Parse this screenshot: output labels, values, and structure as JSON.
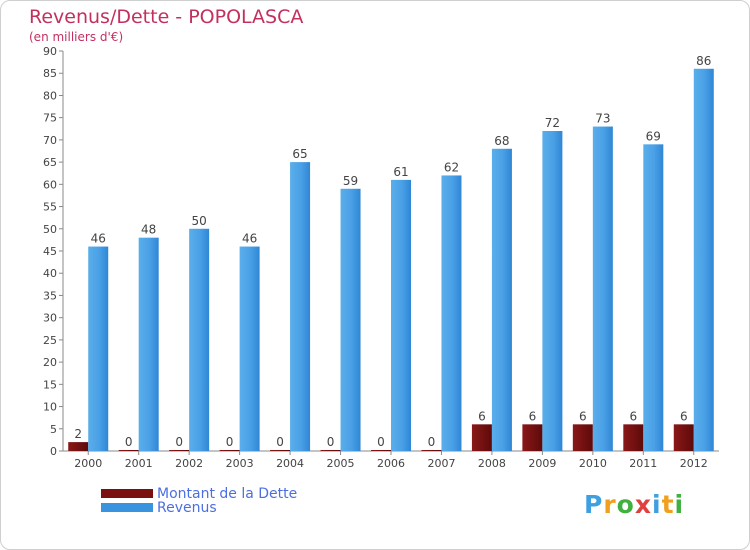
{
  "header": {
    "title": "Revenus/Dette - POPOLASCA",
    "subtitle": "(en milliers d'€)"
  },
  "chart_data": {
    "type": "bar",
    "title": "Revenus/Dette - POPOLASCA",
    "ylabel": "(en milliers d'€)",
    "xlabel": "",
    "categories": [
      "2000",
      "2001",
      "2002",
      "2003",
      "2004",
      "2005",
      "2006",
      "2007",
      "2008",
      "2009",
      "2010",
      "2011",
      "2012"
    ],
    "series": [
      {
        "name": "Montant de la Dette",
        "color": "#7a1010",
        "values": [
          2,
          0,
          0,
          0,
          0,
          0,
          0,
          0,
          6,
          6,
          6,
          6,
          6
        ]
      },
      {
        "name": "Revenus",
        "color": "#3a93de",
        "values": [
          46,
          48,
          50,
          46,
          65,
          59,
          61,
          62,
          68,
          72,
          73,
          69,
          86
        ]
      }
    ],
    "ylim": [
      0,
      90
    ],
    "yticks": [
      0,
      5,
      10,
      15,
      20,
      25,
      30,
      35,
      40,
      45,
      50,
      55,
      60,
      65,
      70,
      75,
      80,
      85,
      90
    ],
    "grid": false,
    "legend": "bottom-left"
  },
  "legend": {
    "items": [
      {
        "label": "Montant de la Dette",
        "color": "#7a1010"
      },
      {
        "label": "Revenus",
        "color": "#3a93de"
      }
    ]
  },
  "logo": {
    "letters": [
      {
        "char": "P",
        "color": "#3fa0e0"
      },
      {
        "char": "r",
        "color": "#f0a020"
      },
      {
        "char": "o",
        "color": "#40b040"
      },
      {
        "char": "x",
        "color": "#e04040"
      },
      {
        "char": "i",
        "color": "#3fa0e0"
      },
      {
        "char": "t",
        "color": "#f0a020"
      },
      {
        "char": "i",
        "color": "#40b040"
      }
    ]
  }
}
